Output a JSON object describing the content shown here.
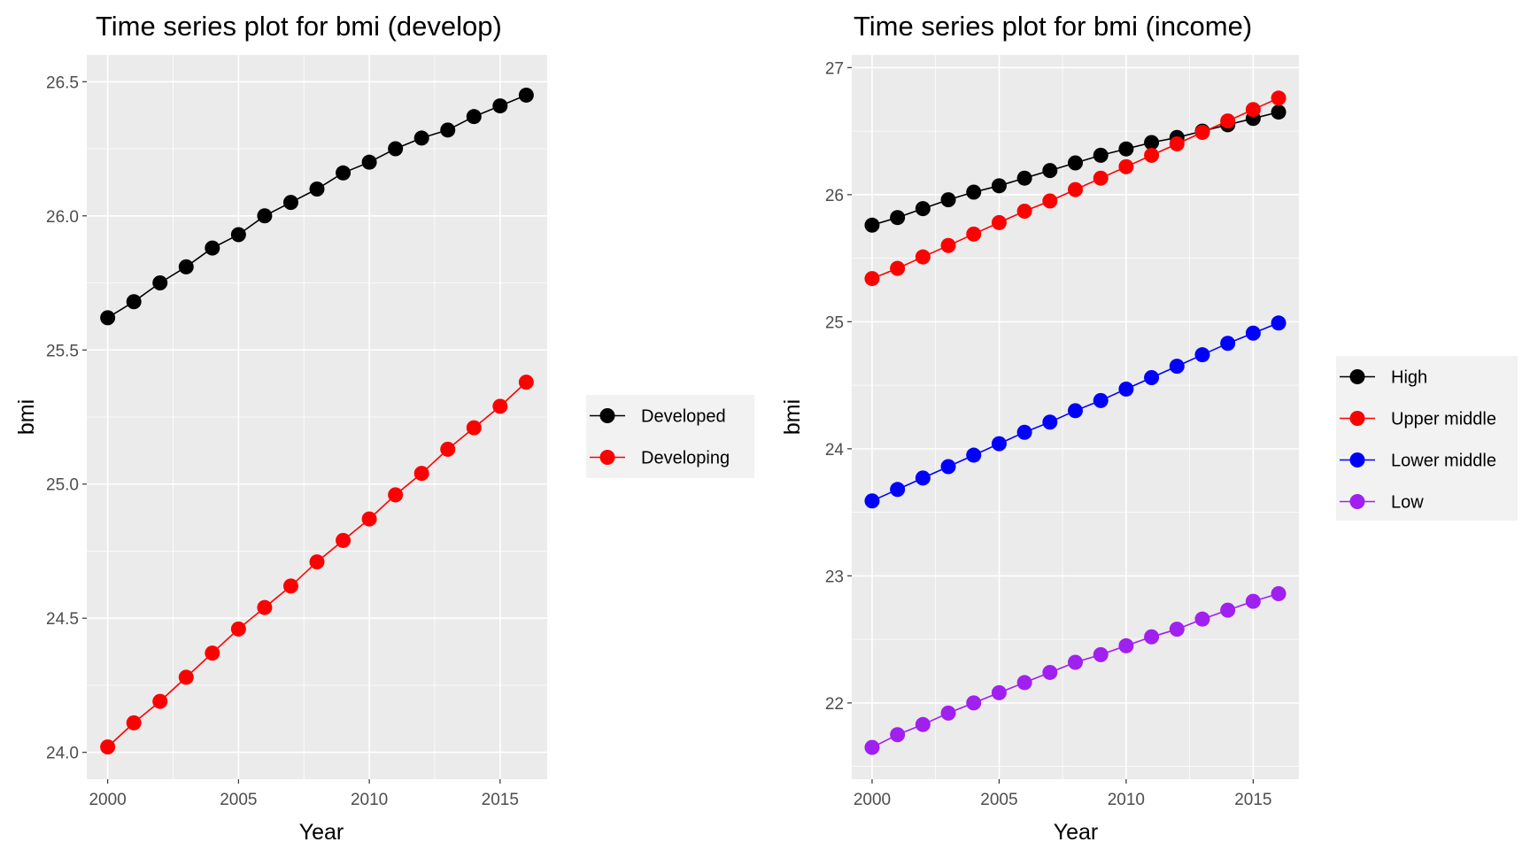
{
  "chart_data": [
    {
      "type": "line",
      "title": "Time series plot for bmi (develop)",
      "xlabel": "Year",
      "ylabel": "bmi",
      "xlim": [
        1999.2,
        2016.8
      ],
      "ylim": [
        23.9,
        26.6
      ],
      "xticks": [
        "2000",
        "2005",
        "2010",
        "2015"
      ],
      "yticks": [
        "24.0",
        "24.5",
        "25.0",
        "25.5",
        "26.0",
        "26.5"
      ],
      "x": [
        2000,
        2001,
        2002,
        2003,
        2004,
        2005,
        2006,
        2007,
        2008,
        2009,
        2010,
        2011,
        2012,
        2013,
        2014,
        2015,
        2016
      ],
      "grid": true,
      "legend_position": "right",
      "series": [
        {
          "name": "Developed",
          "color": "#000000",
          "values": [
            25.62,
            25.68,
            25.75,
            25.81,
            25.88,
            25.93,
            26.0,
            26.05,
            26.1,
            26.16,
            26.2,
            26.25,
            26.29,
            26.32,
            26.37,
            26.41,
            26.45
          ]
        },
        {
          "name": "Developing",
          "color": "#ff0000",
          "values": [
            24.02,
            24.11,
            24.19,
            24.28,
            24.37,
            24.46,
            24.54,
            24.62,
            24.71,
            24.79,
            24.87,
            24.96,
            25.04,
            25.13,
            25.21,
            25.29,
            25.38
          ]
        }
      ]
    },
    {
      "type": "line",
      "title": "Time series plot for bmi (income)",
      "xlabel": "Year",
      "ylabel": "bmi",
      "xlim": [
        1999.2,
        2016.8
      ],
      "ylim": [
        21.4,
        27.1
      ],
      "xticks": [
        "2000",
        "2005",
        "2010",
        "2015"
      ],
      "yticks": [
        "22",
        "23",
        "24",
        "25",
        "26",
        "27"
      ],
      "x": [
        2000,
        2001,
        2002,
        2003,
        2004,
        2005,
        2006,
        2007,
        2008,
        2009,
        2010,
        2011,
        2012,
        2013,
        2014,
        2015,
        2016
      ],
      "grid": true,
      "legend_position": "right",
      "series": [
        {
          "name": "High",
          "color": "#000000",
          "values": [
            25.76,
            25.82,
            25.89,
            25.96,
            26.02,
            26.07,
            26.13,
            26.19,
            26.25,
            26.31,
            26.36,
            26.41,
            26.45,
            26.5,
            26.55,
            26.6,
            26.65
          ]
        },
        {
          "name": "Upper middle",
          "color": "#ff0000",
          "values": [
            25.34,
            25.42,
            25.51,
            25.6,
            25.69,
            25.78,
            25.87,
            25.95,
            26.04,
            26.13,
            26.22,
            26.31,
            26.4,
            26.49,
            26.58,
            26.67,
            26.76
          ]
        },
        {
          "name": "Lower middle",
          "color": "#0000ff",
          "values": [
            23.59,
            23.68,
            23.77,
            23.86,
            23.95,
            24.04,
            24.13,
            24.21,
            24.3,
            24.38,
            24.47,
            24.56,
            24.65,
            24.74,
            24.83,
            24.91,
            24.99
          ]
        },
        {
          "name": "Low",
          "color": "#a020f0",
          "values": [
            21.65,
            21.75,
            21.83,
            21.92,
            22.0,
            22.08,
            22.16,
            22.24,
            22.32,
            22.38,
            22.45,
            22.52,
            22.58,
            22.66,
            22.73,
            22.8,
            22.86
          ]
        }
      ]
    }
  ]
}
